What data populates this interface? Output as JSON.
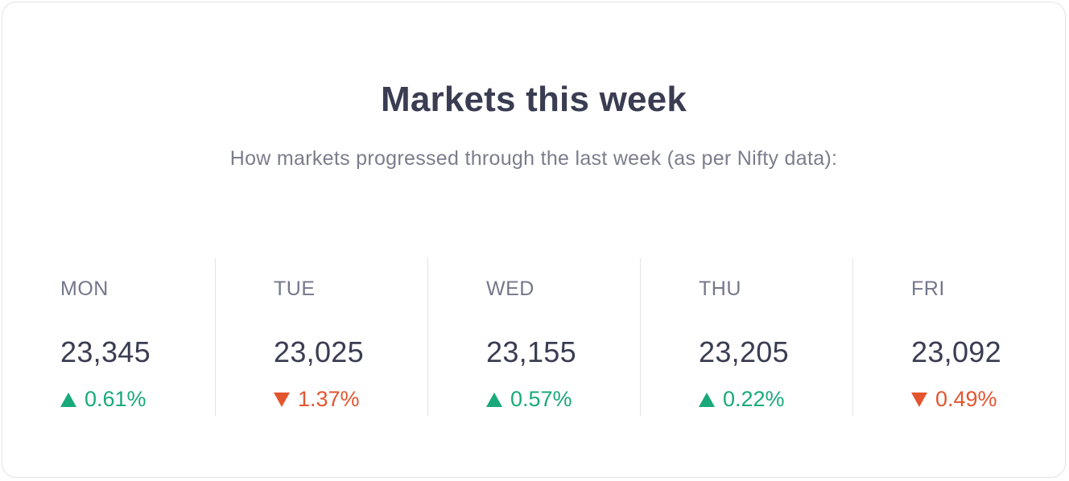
{
  "card": {
    "title": "Markets this week",
    "subtitle": "How markets progressed through the last week (as per Nifty data):"
  },
  "days": [
    {
      "label": "MON",
      "value": "23,345",
      "change": "0.61%",
      "direction": "up"
    },
    {
      "label": "TUE",
      "value": "23,025",
      "change": "1.37%",
      "direction": "down"
    },
    {
      "label": "WED",
      "value": "23,155",
      "change": "0.57%",
      "direction": "up"
    },
    {
      "label": "THU",
      "value": "23,205",
      "change": "0.22%",
      "direction": "up"
    },
    {
      "label": "FRI",
      "value": "23,092",
      "change": "0.49%",
      "direction": "down"
    }
  ],
  "colors": {
    "up": "#19a97b",
    "down": "#e3552f",
    "title": "#3a3d52",
    "muted": "#7b7d8c"
  },
  "icons": {
    "up": "triangle-up-icon",
    "down": "triangle-down-icon"
  }
}
